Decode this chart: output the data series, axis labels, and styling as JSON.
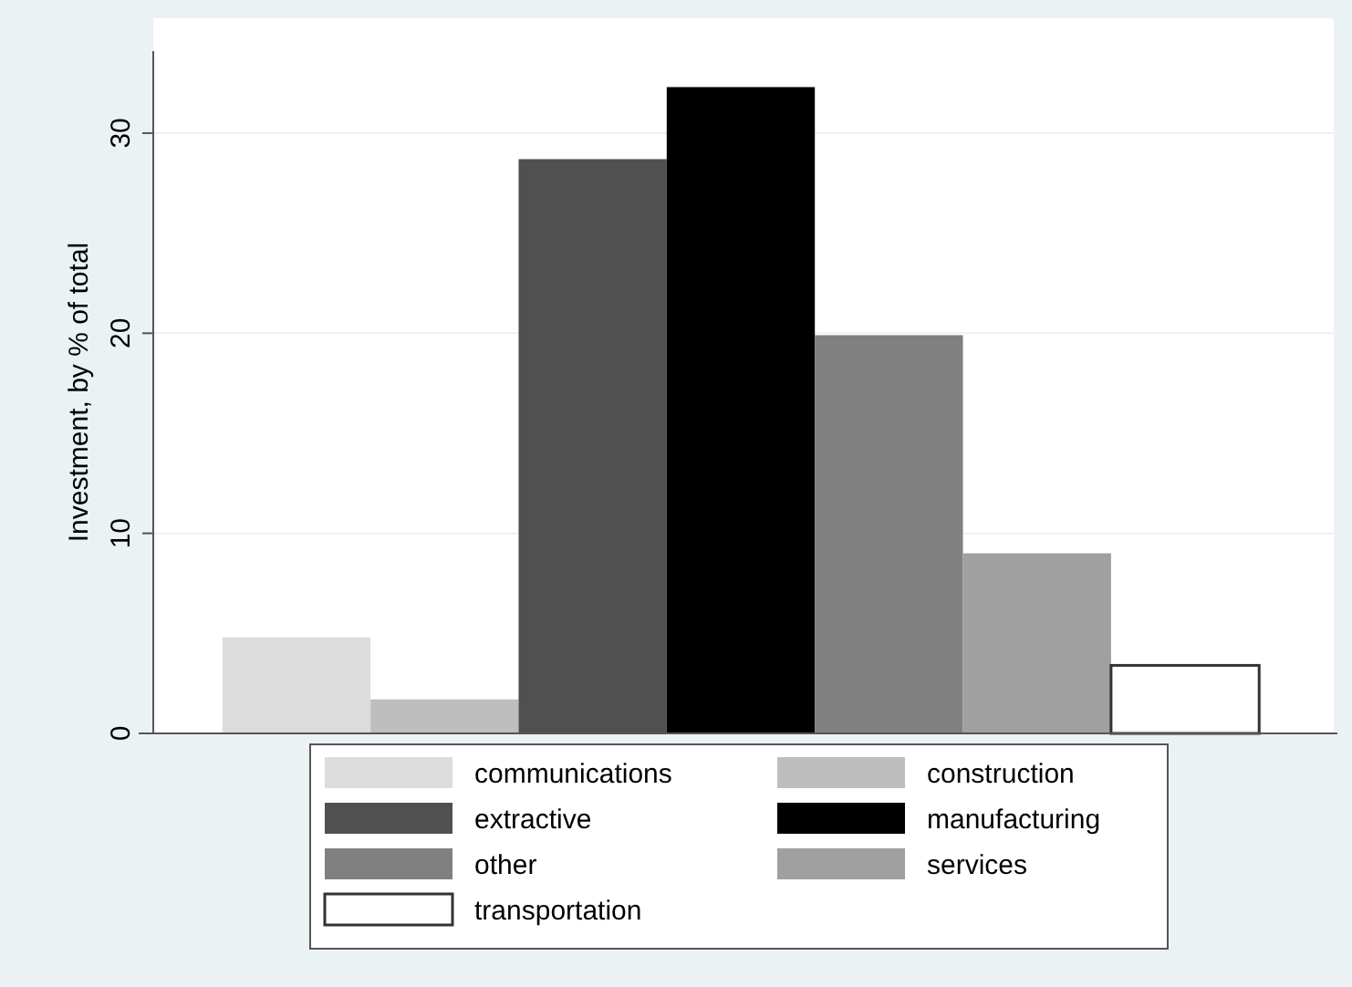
{
  "chart_data": {
    "type": "bar",
    "ylabel": "Investment, by % of total",
    "categories": [
      null
    ],
    "series": [
      {
        "name": "communications",
        "color": "#dcdcdc",
        "values": [
          4.8
        ]
      },
      {
        "name": "construction",
        "color": "#bebebe",
        "values": [
          1.7
        ]
      },
      {
        "name": "extractive",
        "color": "#505050",
        "values": [
          28.7
        ]
      },
      {
        "name": "manufacturing",
        "color": "#000000",
        "values": [
          32.3
        ]
      },
      {
        "name": "other",
        "color": "#808080",
        "values": [
          19.9
        ]
      },
      {
        "name": "services",
        "color": "#a0a0a0",
        "values": [
          9.0
        ]
      },
      {
        "name": "transportation",
        "color": "#ffffff",
        "values": [
          3.4
        ]
      }
    ],
    "ylim": [
      0,
      34.1
    ],
    "yticks": [
      0,
      10,
      20,
      30
    ],
    "grid": "y",
    "legend": "bottom"
  }
}
